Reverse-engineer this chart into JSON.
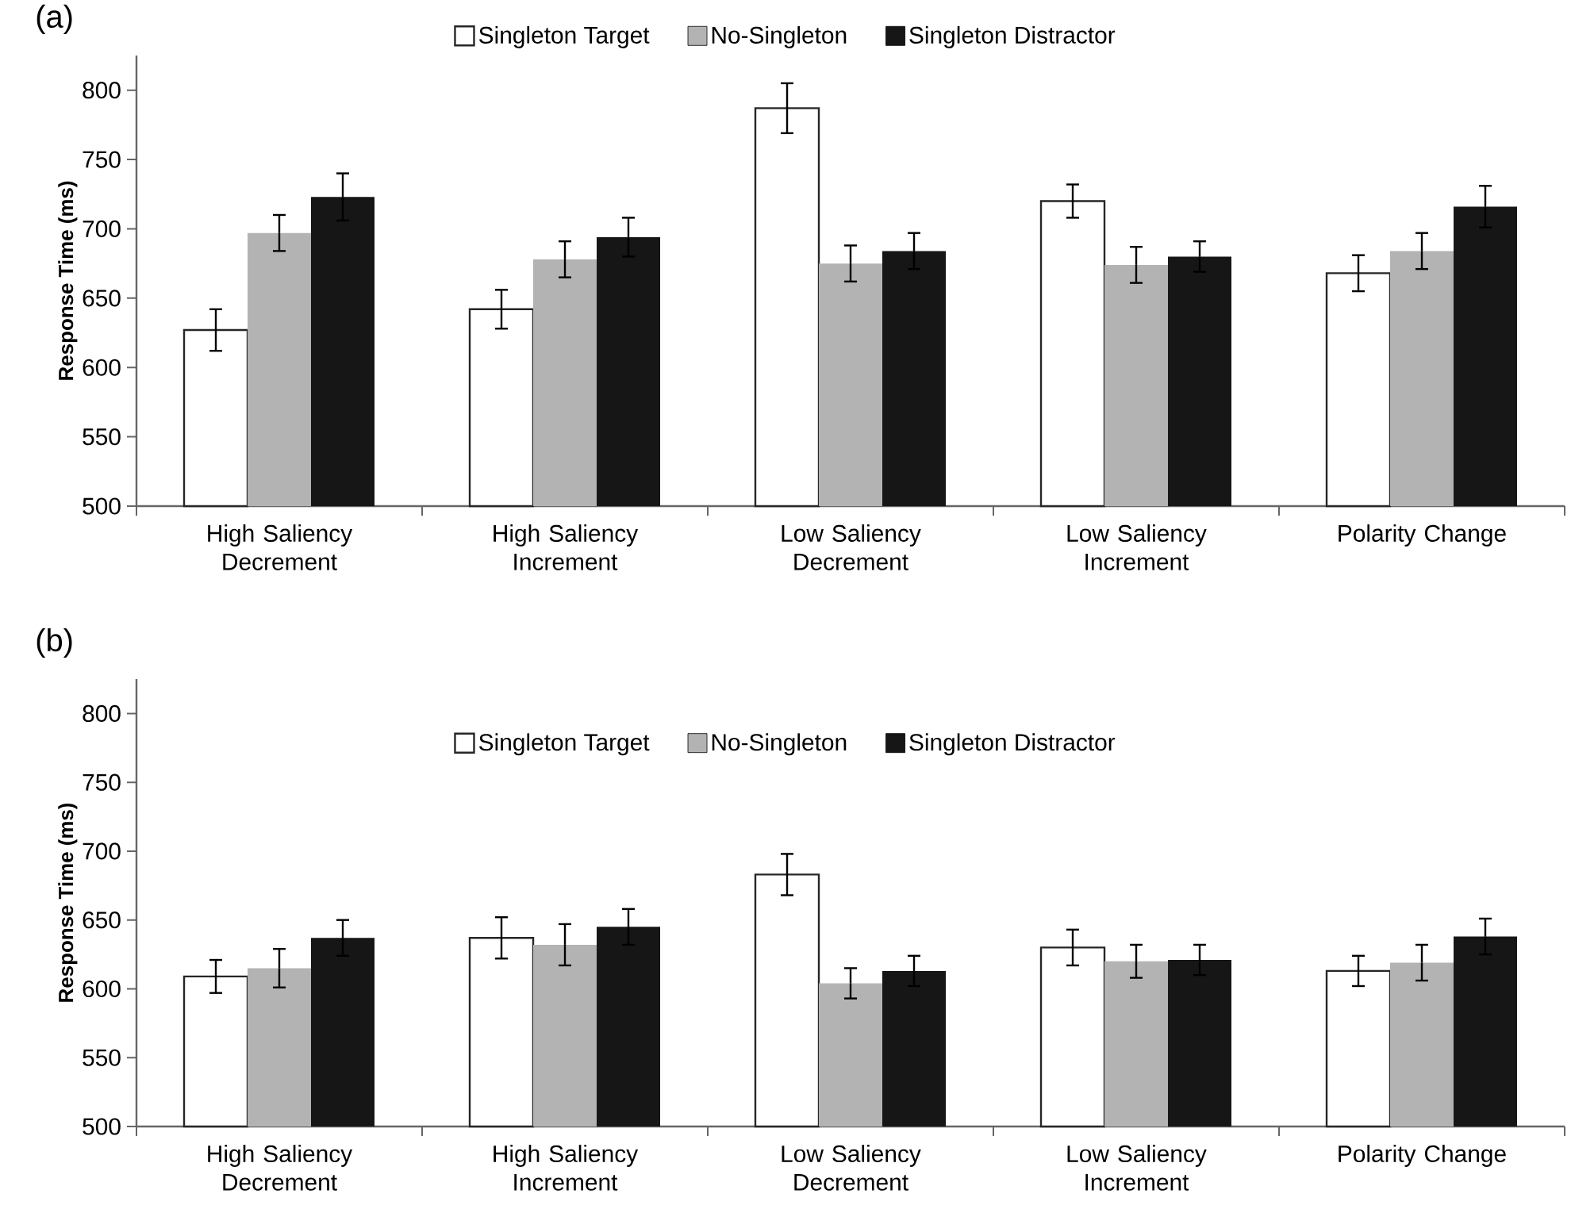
{
  "chart_data": [
    {
      "type": "bar",
      "title": "(a)",
      "ylabel": "Response Time (ms)",
      "legend": "top",
      "ylim": [
        500,
        825
      ],
      "yticks": [
        500,
        550,
        600,
        650,
        700,
        750,
        800
      ],
      "categories": [
        "High Saliency Decrement",
        "High Saliency Increment",
        "Low Saliency Decrement",
        "Low Saliency Increment",
        "Polarity Change"
      ],
      "series": [
        {
          "name": "Singleton Target",
          "color": "#ffffff",
          "values": [
            627,
            642,
            787,
            720,
            668
          ],
          "errors": [
            15,
            14,
            18,
            12,
            13
          ]
        },
        {
          "name": "No-Singleton",
          "color": "#b3b3b3",
          "values": [
            697,
            678,
            675,
            674,
            684
          ],
          "errors": [
            13,
            13,
            13,
            13,
            13
          ]
        },
        {
          "name": "Singleton Distractor",
          "color": "#161616",
          "values": [
            723,
            694,
            684,
            680,
            716
          ],
          "errors": [
            17,
            14,
            13,
            11,
            15
          ]
        }
      ]
    },
    {
      "type": "bar",
      "title": "(b)",
      "ylabel": "Response Time (ms)",
      "legend": "top",
      "ylim": [
        500,
        825
      ],
      "yticks": [
        500,
        550,
        600,
        650,
        700,
        750,
        800
      ],
      "categories": [
        "High Saliency Decrement",
        "High Saliency Increment",
        "Low Saliency Decrement",
        "Low Saliency Increment",
        "Polarity Change"
      ],
      "series": [
        {
          "name": "Singleton Target",
          "color": "#ffffff",
          "values": [
            609,
            637,
            683,
            630,
            613
          ],
          "errors": [
            12,
            15,
            15,
            13,
            11
          ]
        },
        {
          "name": "No-Singleton",
          "color": "#b3b3b3",
          "values": [
            615,
            632,
            604,
            620,
            619
          ],
          "errors": [
            14,
            15,
            11,
            12,
            13
          ]
        },
        {
          "name": "Singleton Distractor",
          "color": "#161616",
          "values": [
            637,
            645,
            613,
            621,
            638
          ],
          "errors": [
            13,
            13,
            11,
            11,
            13
          ]
        }
      ]
    }
  ]
}
